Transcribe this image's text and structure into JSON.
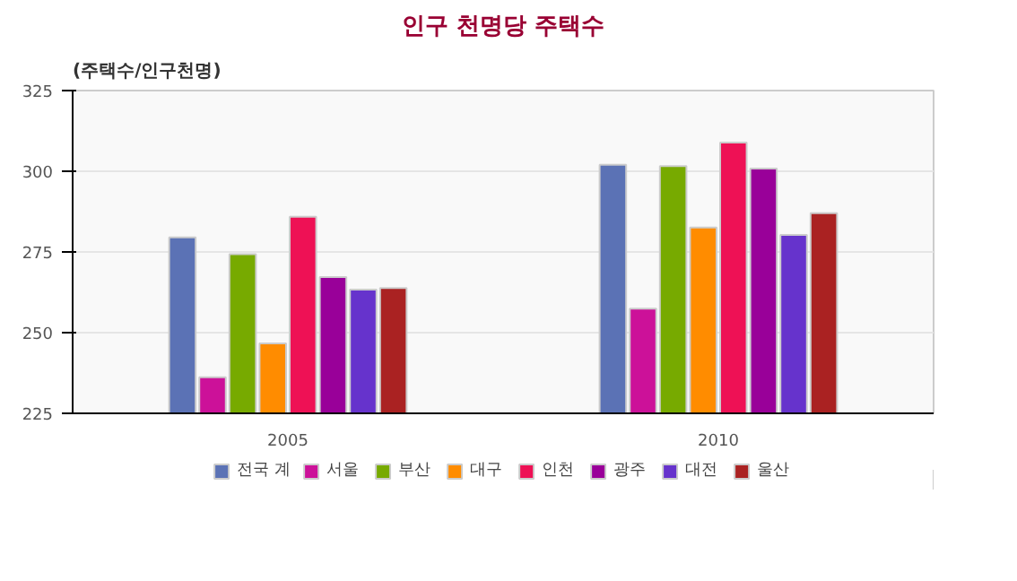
{
  "chart_data": {
    "type": "bar",
    "title": "인구 천명당 주택수",
    "ylabel": "(주택수/인구천명)",
    "categories": [
      "2005",
      "2010"
    ],
    "series": [
      {
        "name": "전국 계",
        "color": "#5b72b5",
        "values": [
          279.5,
          302
        ]
      },
      {
        "name": "서울",
        "color": "#cc1199",
        "values": [
          236.2,
          257.4
        ]
      },
      {
        "name": "부산",
        "color": "#77aa00",
        "values": [
          274.3,
          301.6
        ]
      },
      {
        "name": "대구",
        "color": "#ff8c00",
        "values": [
          246.7,
          282.6
        ]
      },
      {
        "name": "인천",
        "color": "#ee1155",
        "values": [
          285.9,
          308.9
        ]
      },
      {
        "name": "광주",
        "color": "#990099",
        "values": [
          267.2,
          300.8
        ]
      },
      {
        "name": "대전",
        "color": "#6633cc",
        "values": [
          263.3,
          280.3
        ]
      },
      {
        "name": "울산",
        "color": "#aa2222",
        "values": [
          263.8,
          287
        ]
      }
    ],
    "ylim": [
      225,
      325
    ],
    "yticks": [
      225,
      250,
      275,
      300,
      325
    ],
    "grid": "y",
    "legend": "bottom"
  }
}
